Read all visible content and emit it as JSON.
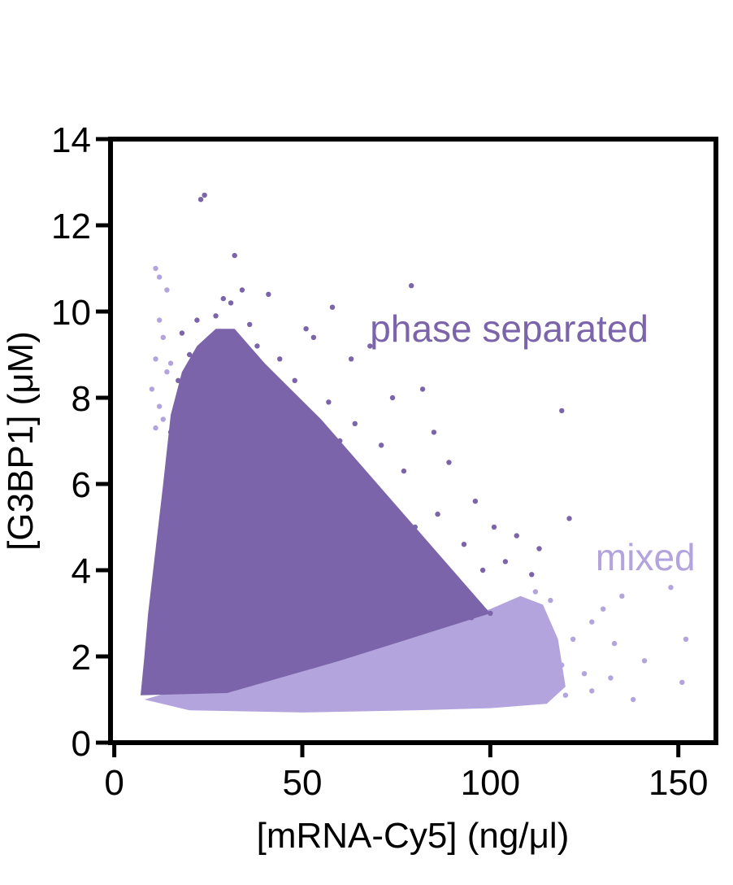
{
  "chart_data": {
    "type": "scatter",
    "xlabel": "[mRNA-Cy5] (ng/μl)",
    "ylabel": "[G3BP1] (μM)",
    "xlim": [
      -1,
      160
    ],
    "ylim": [
      0,
      14
    ],
    "xticks": [
      0,
      50,
      100,
      150
    ],
    "yticks": [
      0,
      2,
      4,
      6,
      8,
      10,
      12,
      14
    ],
    "grid": false,
    "annotations": [
      {
        "id": "phase",
        "text": "phase separated",
        "color": "#7b64aa",
        "x": 68,
        "y": 9.3
      },
      {
        "id": "mixed",
        "text": "mixed",
        "color": "#b3a4dd",
        "x": 128,
        "y": 4.0
      }
    ],
    "series": [
      {
        "name": "phase separated",
        "color": "#7b64aa",
        "points": [
          [
            23,
            12.6
          ],
          [
            24,
            12.7
          ],
          [
            32,
            11.3
          ],
          [
            34,
            10.5
          ],
          [
            41,
            10.4
          ],
          [
            58,
            10.1
          ],
          [
            79,
            10.6
          ],
          [
            31,
            10.2
          ],
          [
            27,
            9.9
          ],
          [
            36,
            9.7
          ],
          [
            51,
            9.6
          ],
          [
            53,
            9.4
          ],
          [
            63,
            8.9
          ],
          [
            68,
            9.2
          ],
          [
            82,
            8.2
          ],
          [
            119,
            7.7
          ],
          [
            74,
            8.0
          ],
          [
            85,
            7.2
          ],
          [
            89,
            6.5
          ],
          [
            96,
            5.6
          ],
          [
            101,
            5.0
          ],
          [
            107,
            4.8
          ],
          [
            113,
            4.5
          ],
          [
            121,
            5.2
          ],
          [
            104,
            4.2
          ],
          [
            111,
            3.9
          ],
          [
            98,
            4.0
          ],
          [
            93,
            4.6
          ],
          [
            86,
            5.3
          ],
          [
            77,
            6.3
          ],
          [
            71,
            6.9
          ],
          [
            64,
            7.4
          ],
          [
            57,
            7.9
          ],
          [
            48,
            8.4
          ],
          [
            44,
            8.9
          ],
          [
            38,
            9.2
          ],
          [
            29,
            10.3
          ],
          [
            20,
            9.0
          ],
          [
            17,
            8.4
          ],
          [
            15,
            7.2
          ],
          [
            14,
            6.0
          ],
          [
            13,
            5.0
          ],
          [
            12,
            4.0
          ],
          [
            11,
            3.0
          ],
          [
            10,
            2.2
          ],
          [
            9,
            1.6
          ],
          [
            8,
            1.2
          ],
          [
            18,
            9.5
          ],
          [
            22,
            9.8
          ],
          [
            25,
            9.1
          ],
          [
            33,
            8.7
          ],
          [
            40,
            7.8
          ],
          [
            46,
            7.1
          ],
          [
            55,
            6.4
          ],
          [
            61,
            5.8
          ],
          [
            66,
            5.2
          ],
          [
            72,
            4.6
          ],
          [
            79,
            4.0
          ],
          [
            84,
            3.6
          ],
          [
            90,
            3.2
          ],
          [
            95,
            2.9
          ],
          [
            100,
            3.0
          ],
          [
            60,
            7.0
          ],
          [
            70,
            5.9
          ],
          [
            80,
            5.0
          ]
        ]
      },
      {
        "name": "mixed",
        "color": "#b3a4dd",
        "points": [
          [
            11,
            11.0
          ],
          [
            12,
            10.8
          ],
          [
            14,
            10.5
          ],
          [
            12,
            9.8
          ],
          [
            13,
            9.4
          ],
          [
            11,
            8.9
          ],
          [
            14,
            8.6
          ],
          [
            10,
            8.2
          ],
          [
            12,
            7.8
          ],
          [
            11,
            7.3
          ],
          [
            15,
            8.8
          ],
          [
            13,
            7.5
          ],
          [
            148,
            3.6
          ],
          [
            152,
            2.4
          ],
          [
            151,
            1.4
          ],
          [
            141,
            1.9
          ],
          [
            138,
            1.0
          ],
          [
            135,
            3.4
          ],
          [
            130,
            3.1
          ],
          [
            127,
            2.8
          ],
          [
            133,
            2.3
          ],
          [
            125,
            1.6
          ],
          [
            122,
            2.4
          ],
          [
            119,
            1.8
          ],
          [
            116,
            3.3
          ],
          [
            112,
            3.5
          ],
          [
            109,
            2.7
          ],
          [
            106,
            3.0
          ],
          [
            103,
            2.1
          ],
          [
            115,
            1.2
          ],
          [
            120,
            1.1
          ],
          [
            127,
            1.2
          ],
          [
            132,
            1.5
          ]
        ]
      }
    ]
  }
}
